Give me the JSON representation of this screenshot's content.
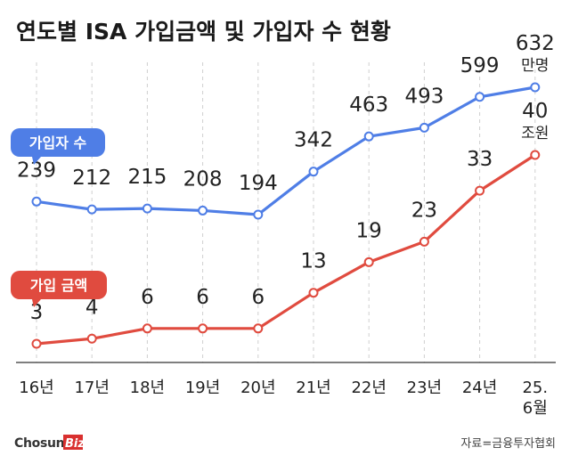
{
  "title": "연도별 ISA 가입금액 및 가입자 수 현황",
  "source": "자료=금융투자협회",
  "logo": {
    "main": "Chosun",
    "accent": "Biz"
  },
  "colors": {
    "members": "#4f7ee6",
    "amount": "#e04b3f",
    "grid": "#cfcfcf",
    "axis": "#333333"
  },
  "chart_data": {
    "type": "line",
    "categories": [
      "16년",
      "17년",
      "18년",
      "19년",
      "20년",
      "21년",
      "22년",
      "23년",
      "24년",
      "25.\n6월"
    ],
    "series": [
      {
        "name": "가입자 수",
        "unit": "만명",
        "values": [
          239,
          212,
          215,
          208,
          194,
          342,
          463,
          493,
          599,
          632
        ],
        "color": "#4f7ee6"
      },
      {
        "name": "가입 금액",
        "unit": "조원",
        "values": [
          3,
          4,
          6,
          6,
          6,
          13,
          19,
          23,
          33,
          40
        ],
        "color": "#e04b3f"
      }
    ],
    "grid": "vertical dashed",
    "legend": "left, tag labels next to each line"
  }
}
